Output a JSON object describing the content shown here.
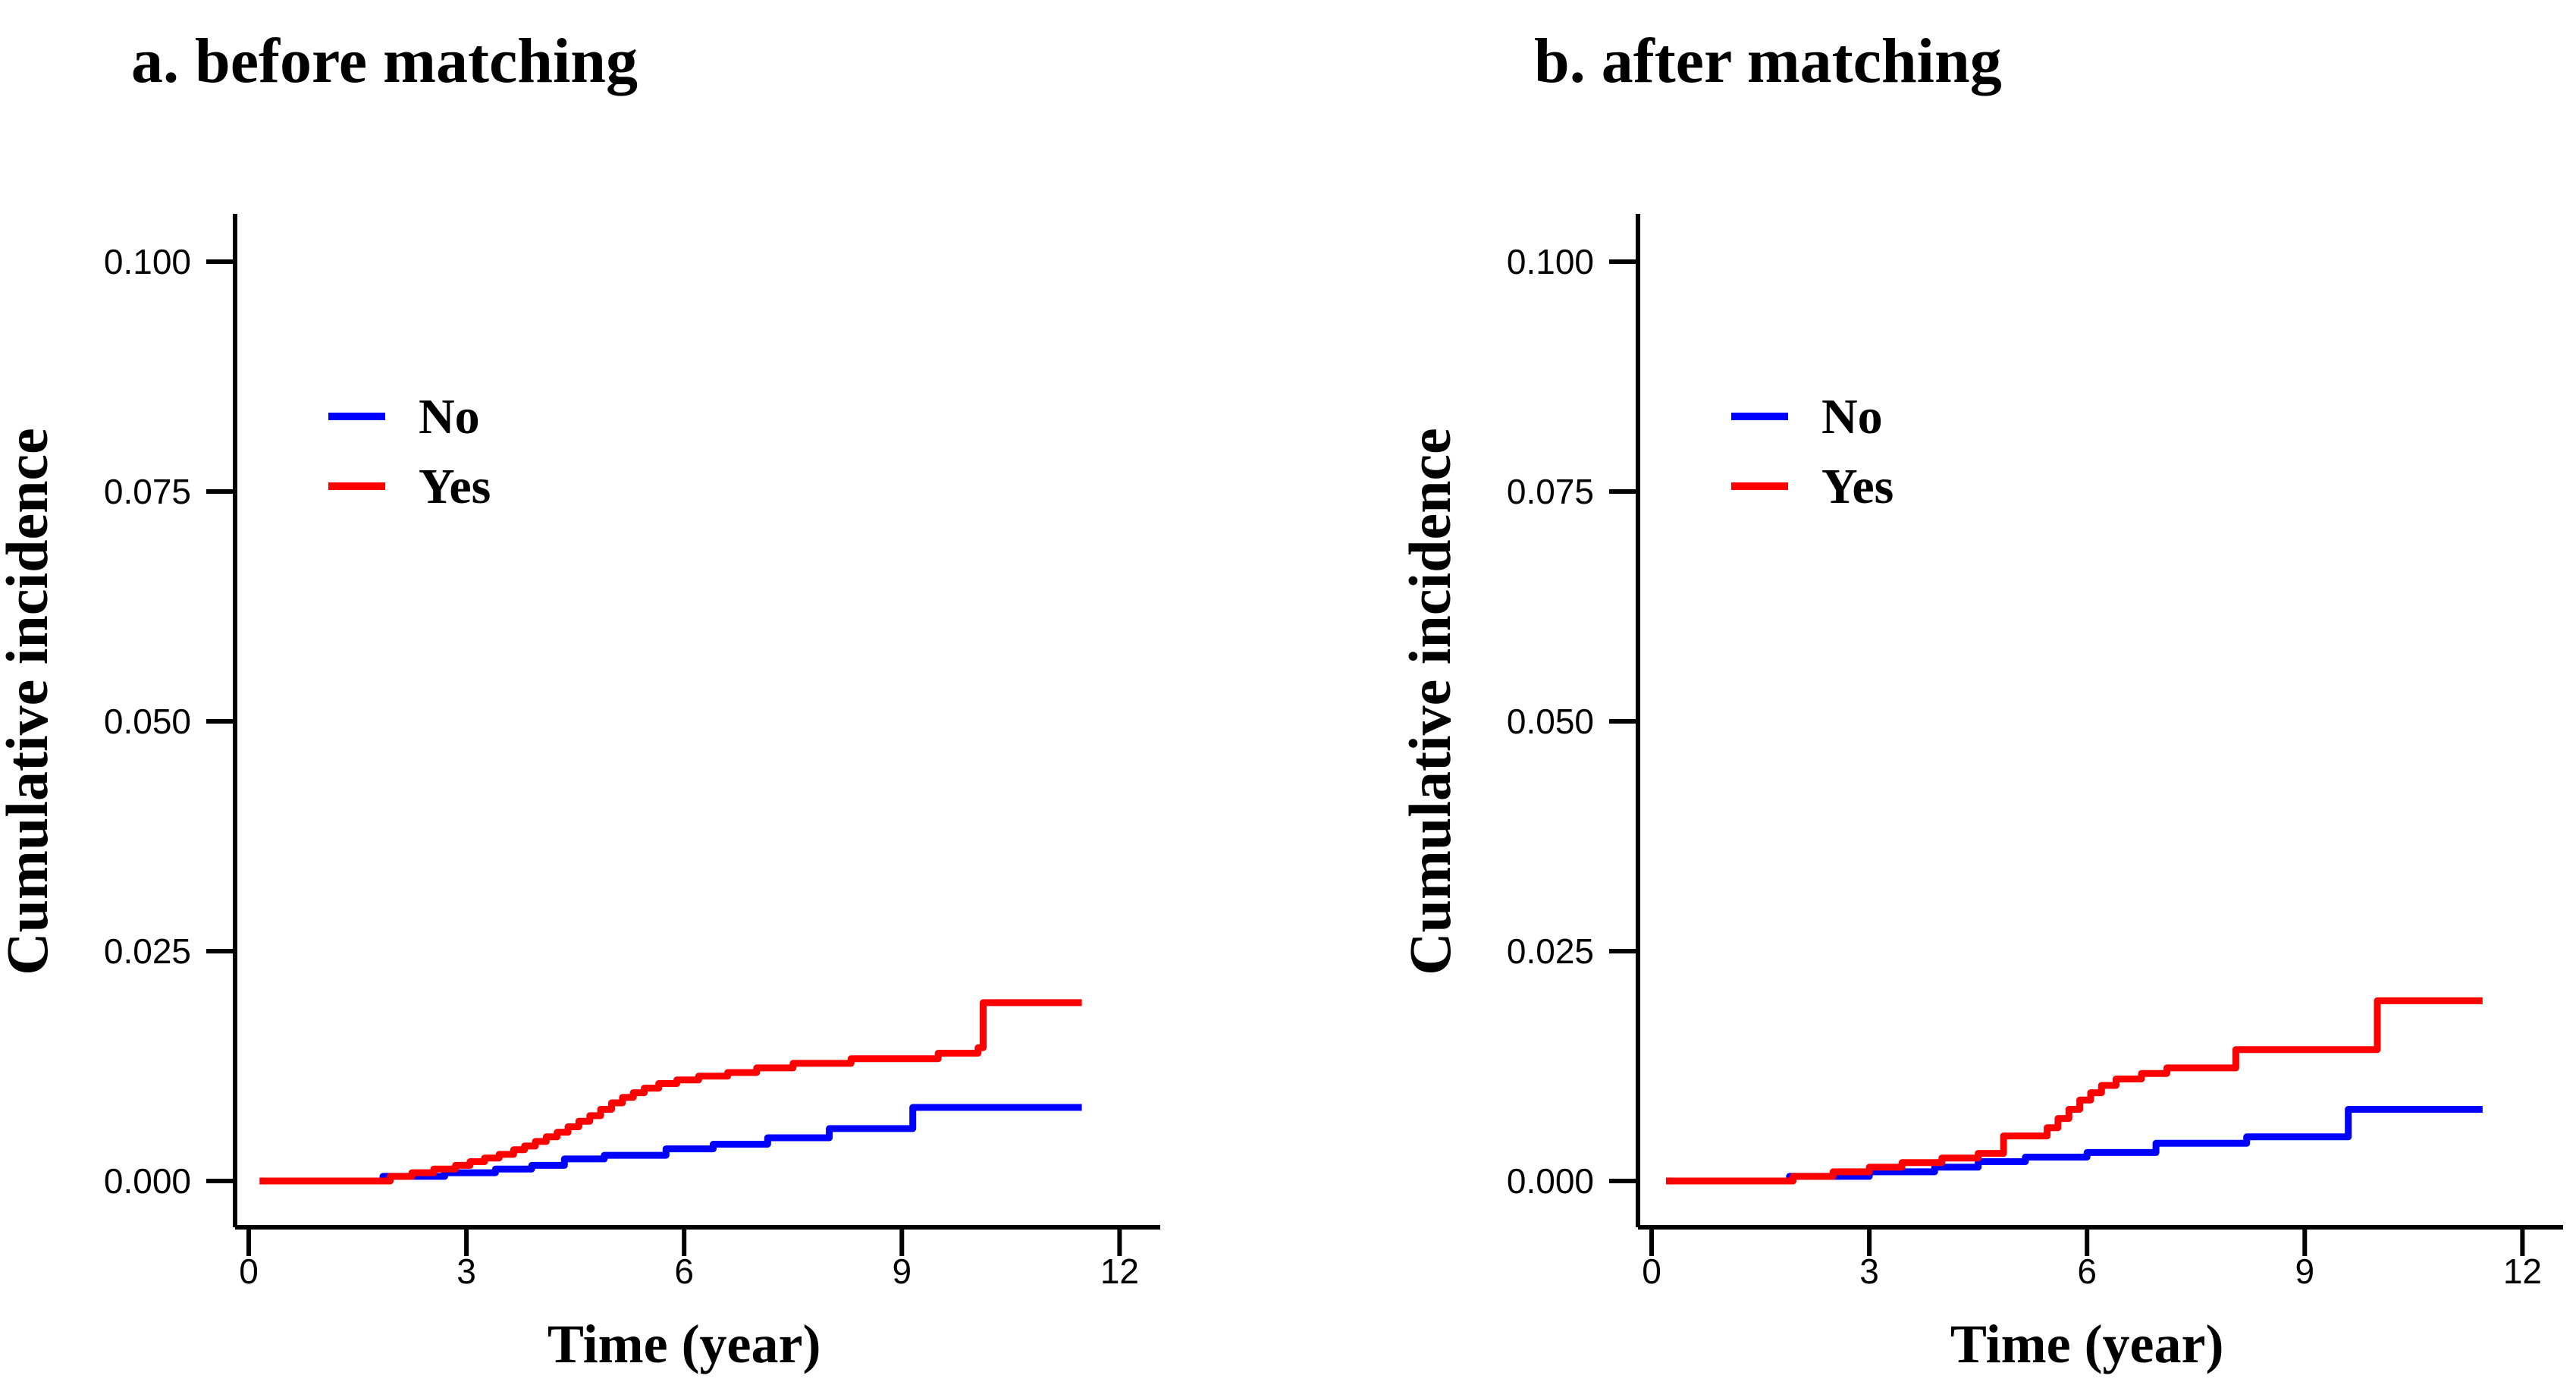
{
  "figure": {
    "background_color": "#FFFFFF",
    "axis_color": "#000000",
    "text_color": "#000000"
  },
  "chart_data": [
    {
      "type": "line",
      "subtype": "step-cumulative-incidence",
      "title": "a. before matching",
      "xlabel": "Time (year)",
      "ylabel": "Cumulative incidence",
      "xlim": [
        0,
        12.6
      ],
      "ylim": [
        -0.005,
        0.105
      ],
      "x_ticks": [
        0,
        3,
        6,
        9,
        12
      ],
      "y_tick_labels": [
        "0.000",
        "0.025",
        "0.050",
        "0.075",
        "0.100"
      ],
      "y_tick_values": [
        0.0,
        0.025,
        0.05,
        0.075,
        0.1
      ],
      "grid": "off",
      "legend_position": "upper-left-inside",
      "legend": [
        {
          "label": "No",
          "color": "#0000FF"
        },
        {
          "label": "Yes",
          "color": "#FF0000"
        }
      ],
      "series": [
        {
          "name": "No",
          "color": "#0000FF",
          "points": [
            [
              0.15,
              0
            ],
            [
              1.85,
              0.0005
            ],
            [
              2.7,
              0.0009
            ],
            [
              3.4,
              0.0013
            ],
            [
              3.9,
              0.0017
            ],
            [
              4.35,
              0.0024
            ],
            [
              4.9,
              0.0028
            ],
            [
              5.75,
              0.0035
            ],
            [
              6.4,
              0.004
            ],
            [
              7.15,
              0.0047
            ],
            [
              8.0,
              0.0057
            ],
            [
              9.15,
              0.008
            ],
            [
              11.48,
              0.008
            ]
          ]
        },
        {
          "name": "Yes",
          "color": "#FF0000",
          "points": [
            [
              0.15,
              0
            ],
            [
              1.95,
              0.0005
            ],
            [
              2.25,
              0.0009
            ],
            [
              2.55,
              0.0013
            ],
            [
              2.85,
              0.0017
            ],
            [
              3.05,
              0.0021
            ],
            [
              3.25,
              0.0025
            ],
            [
              3.45,
              0.0029
            ],
            [
              3.65,
              0.0034
            ],
            [
              3.8,
              0.0038
            ],
            [
              3.95,
              0.0043
            ],
            [
              4.1,
              0.0048
            ],
            [
              4.25,
              0.0053
            ],
            [
              4.4,
              0.0059
            ],
            [
              4.55,
              0.0065
            ],
            [
              4.7,
              0.0071
            ],
            [
              4.85,
              0.0078
            ],
            [
              5.0,
              0.0085
            ],
            [
              5.15,
              0.0091
            ],
            [
              5.3,
              0.0096
            ],
            [
              5.45,
              0.0101
            ],
            [
              5.65,
              0.0106
            ],
            [
              5.9,
              0.011
            ],
            [
              6.2,
              0.0114
            ],
            [
              6.6,
              0.0118
            ],
            [
              7.0,
              0.0123
            ],
            [
              7.5,
              0.0128
            ],
            [
              8.3,
              0.0133
            ],
            [
              9.5,
              0.0139
            ],
            [
              10.05,
              0.0145
            ],
            [
              10.12,
              0.0194
            ],
            [
              11.48,
              0.0194
            ]
          ]
        }
      ]
    },
    {
      "type": "line",
      "subtype": "step-cumulative-incidence",
      "title": "b. after matching",
      "xlabel": "Time (year)",
      "ylabel": "Cumulative incidence",
      "xlim": [
        0,
        12.6
      ],
      "ylim": [
        -0.005,
        0.105
      ],
      "x_ticks": [
        0,
        3,
        6,
        9,
        12
      ],
      "y_tick_labels": [
        "0.000",
        "0.025",
        "0.050",
        "0.075",
        "0.100"
      ],
      "y_tick_values": [
        0.0,
        0.025,
        0.05,
        0.075,
        0.1
      ],
      "grid": "off",
      "legend_position": "upper-left-inside",
      "legend": [
        {
          "label": "No",
          "color": "#0000FF"
        },
        {
          "label": "Yes",
          "color": "#FF0000"
        }
      ],
      "series": [
        {
          "name": "No",
          "color": "#0000FF",
          "points": [
            [
              0.2,
              0
            ],
            [
              1.9,
              0.0005
            ],
            [
              3.0,
              0.001
            ],
            [
              3.9,
              0.0015
            ],
            [
              4.5,
              0.0021
            ],
            [
              5.15,
              0.0026
            ],
            [
              6.0,
              0.0031
            ],
            [
              6.95,
              0.0041
            ],
            [
              8.2,
              0.0048
            ],
            [
              9.6,
              0.0078
            ],
            [
              11.45,
              0.0078
            ]
          ]
        },
        {
          "name": "Yes",
          "color": "#FF0000",
          "points": [
            [
              0.2,
              0
            ],
            [
              1.95,
              0.0005
            ],
            [
              2.5,
              0.001
            ],
            [
              3.0,
              0.0015
            ],
            [
              3.45,
              0.002
            ],
            [
              4.0,
              0.0025
            ],
            [
              4.5,
              0.003
            ],
            [
              4.85,
              0.0049
            ],
            [
              5.45,
              0.0058
            ],
            [
              5.6,
              0.0068
            ],
            [
              5.75,
              0.0078
            ],
            [
              5.9,
              0.0088
            ],
            [
              6.05,
              0.0096
            ],
            [
              6.2,
              0.0104
            ],
            [
              6.4,
              0.0111
            ],
            [
              6.75,
              0.0117
            ],
            [
              7.1,
              0.0123
            ],
            [
              8.05,
              0.0143
            ],
            [
              10.0,
              0.0196
            ],
            [
              11.45,
              0.0196
            ]
          ]
        }
      ]
    }
  ]
}
